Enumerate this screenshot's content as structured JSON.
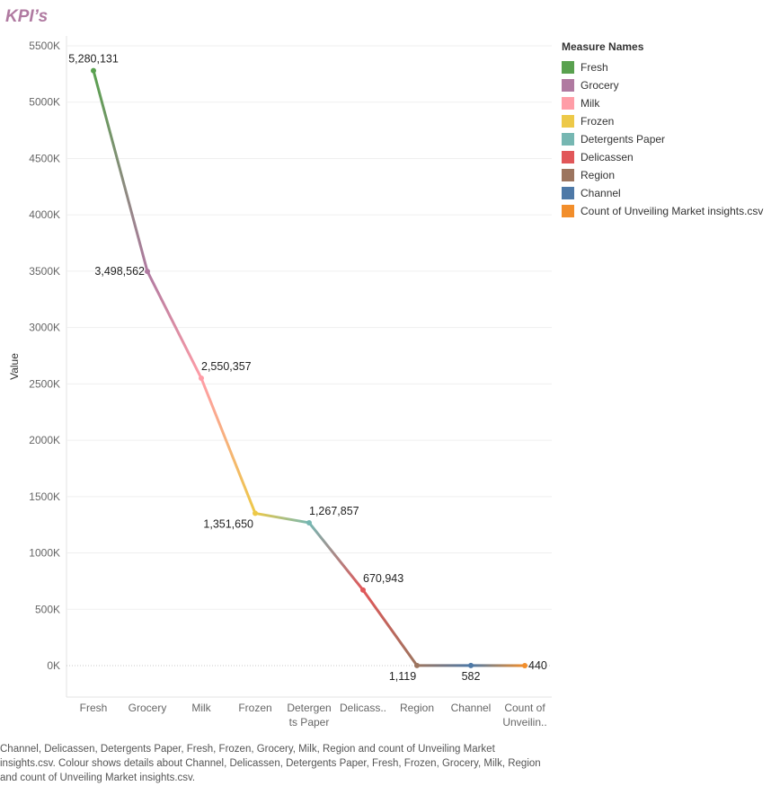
{
  "title": "KPI’s",
  "caption": "Channel, Delicassen, Detergents Paper, Fresh, Frozen, Grocery, Milk, Region and count of Unveiling Market insights.csv.  Colour shows details about Channel, Delicassen, Detergents Paper, Fresh, Frozen, Grocery, Milk, Region and count of Unveiling Market insights.csv.",
  "chart_data": {
    "type": "line",
    "ylabel": "Value",
    "ylim": [
      -270000,
      5500000
    ],
    "yticks": [
      "0K",
      "500K",
      "1000K",
      "1500K",
      "2000K",
      "2500K",
      "3000K",
      "3500K",
      "4000K",
      "4500K",
      "5000K",
      "5500K"
    ],
    "categories": [
      {
        "line1": "Fresh",
        "line2": ""
      },
      {
        "line1": "Grocery",
        "line2": ""
      },
      {
        "line1": "Milk",
        "line2": ""
      },
      {
        "line1": "Frozen",
        "line2": ""
      },
      {
        "line1": "Detergen",
        "line2": "ts Paper"
      },
      {
        "line1": "Delicass..",
        "line2": ""
      },
      {
        "line1": "Region",
        "line2": ""
      },
      {
        "line1": "Channel",
        "line2": ""
      },
      {
        "line1": "Count of",
        "line2": "Unveilin.."
      }
    ],
    "values": [
      5280131,
      3498562,
      2550357,
      1351650,
      1267857,
      670943,
      1119,
      582,
      440
    ],
    "labels": [
      "5,280,131",
      "3,498,562",
      "2,550,357",
      "1,351,650",
      "1,267,857",
      "670,943",
      "1,119",
      "582",
      "440"
    ],
    "colors": [
      "#59a14f",
      "#b07aa1",
      "#ff9da7",
      "#edc948",
      "#76b7b2",
      "#e15759",
      "#9c755f",
      "#4e79a7",
      "#f28e2b"
    ],
    "grid": true,
    "legend_position": "right"
  },
  "legend": {
    "title": "Measure Names",
    "items": [
      {
        "label": "Fresh",
        "color": "#59a14f"
      },
      {
        "label": "Grocery",
        "color": "#b07aa1"
      },
      {
        "label": "Milk",
        "color": "#ff9da7"
      },
      {
        "label": "Frozen",
        "color": "#edc948"
      },
      {
        "label": "Detergents Paper",
        "color": "#76b7b2"
      },
      {
        "label": "Delicassen",
        "color": "#e15759"
      },
      {
        "label": "Region",
        "color": "#9c755f"
      },
      {
        "label": "Channel",
        "color": "#4e79a7"
      },
      {
        "label": "Count of Unveiling Market insights.csv",
        "color": "#f28e2b"
      }
    ]
  }
}
